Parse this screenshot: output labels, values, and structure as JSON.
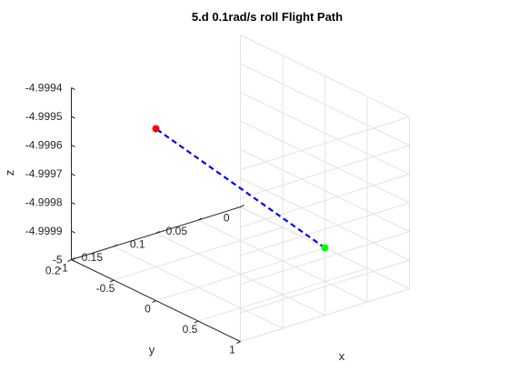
{
  "chart_data": {
    "type": "line3d",
    "title": "5.d 0.1rad/s roll Flight Path",
    "xlabel": "x",
    "ylabel": "y",
    "zlabel": "z",
    "xlim": [
      -1,
      1
    ],
    "ylim": [
      0,
      0.2
    ],
    "zlim": [
      -5,
      -4.9994
    ],
    "x_ticks": [
      "-1",
      "-0.5",
      "0",
      "0.5",
      "1"
    ],
    "y_ticks": [
      "0",
      "0.05",
      "0.1",
      "0.15",
      "0.2"
    ],
    "z_ticks": [
      "-5",
      "-4.9999",
      "-4.9998",
      "-4.9997",
      "-4.9996",
      "-4.9995",
      "-4.9994"
    ],
    "grid": true,
    "series": [
      {
        "style": "dashed",
        "color": "#0000ff",
        "points": [
          {
            "x": 0.0,
            "y": 0.0,
            "z": -5.0
          },
          {
            "x": 0.0,
            "y": 0.2,
            "z": -4.9994
          }
        ]
      }
    ],
    "markers": [
      {
        "x": 0.0,
        "y": 0.0,
        "z": -5.0,
        "color": "#00ff00"
      },
      {
        "x": 0.0,
        "y": 0.2,
        "z": -4.9994,
        "color": "#ff0000"
      }
    ]
  }
}
